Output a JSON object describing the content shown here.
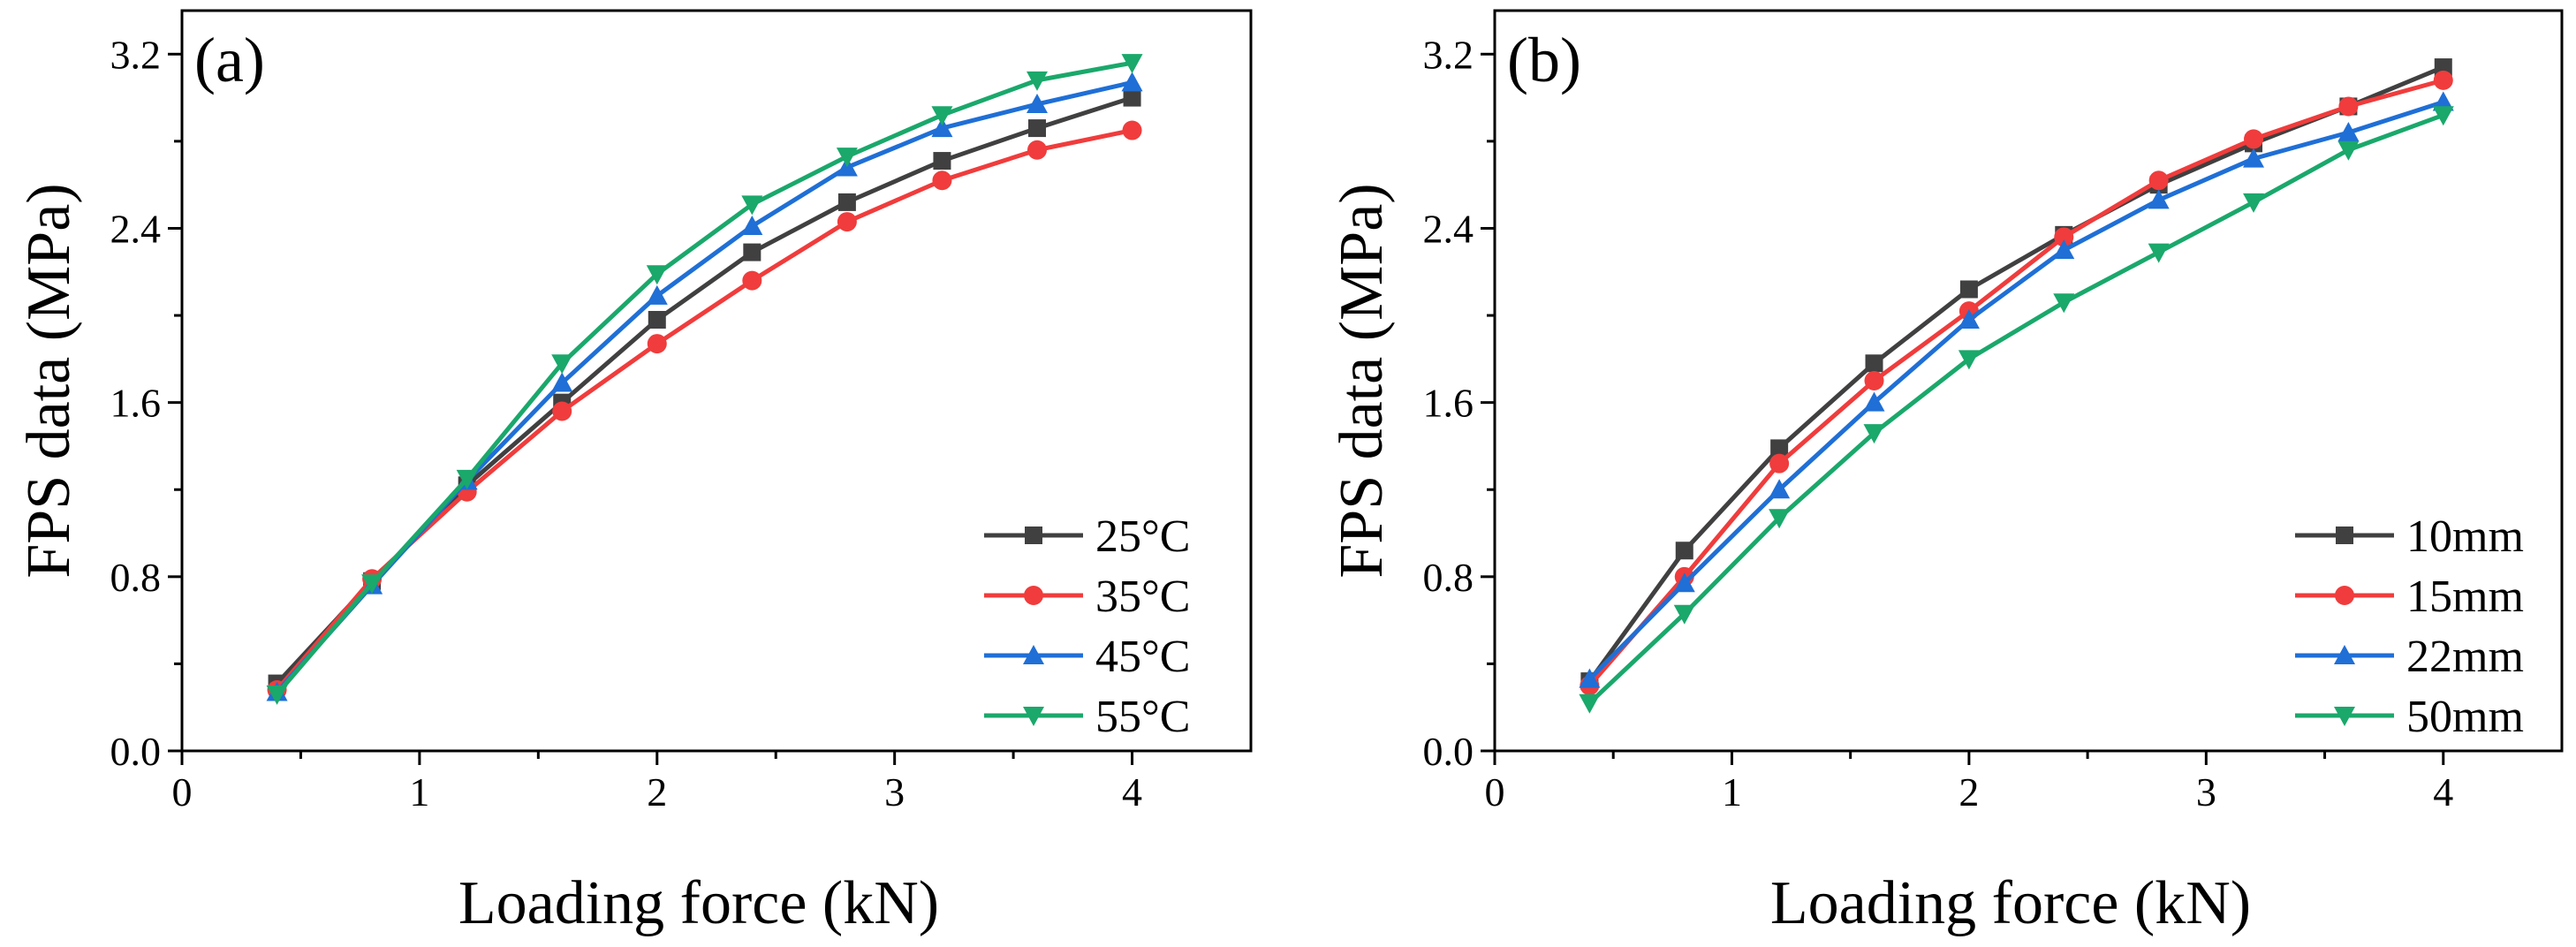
{
  "chart_data": [
    {
      "type": "line",
      "panel_label": "(a)",
      "xlabel": "Loading force  (kN)",
      "ylabel": "FPS data  (MPa)",
      "xlim": [
        0,
        4.5
      ],
      "ylim": [
        0,
        3.4
      ],
      "x_ticks": [
        0,
        1,
        2,
        3,
        4
      ],
      "x_tick_labels": [
        "0",
        "1",
        "2",
        "3",
        "4"
      ],
      "y_ticks": [
        0,
        0.8,
        1.6,
        2.4,
        3.2
      ],
      "y_tick_labels": [
        "0.0",
        "0.8",
        "1.6",
        "2.4",
        "3.2"
      ],
      "legend_position": "bottom-right",
      "x": [
        0.4,
        0.8,
        1.2,
        1.6,
        2.0,
        2.4,
        2.8,
        3.2,
        3.6,
        4.0
      ],
      "series": [
        {
          "name": "25°C",
          "color": "#404040",
          "marker": "square",
          "values": [
            0.31,
            0.78,
            1.22,
            1.6,
            1.98,
            2.29,
            2.52,
            2.71,
            2.86,
            3.0
          ]
        },
        {
          "name": "35°C",
          "color": "#f03c3c",
          "marker": "circle",
          "values": [
            0.28,
            0.79,
            1.19,
            1.56,
            1.87,
            2.16,
            2.43,
            2.62,
            2.76,
            2.85
          ]
        },
        {
          "name": "45°C",
          "color": "#1f6fd6",
          "marker": "triangle-up",
          "values": [
            0.27,
            0.76,
            1.24,
            1.69,
            2.09,
            2.41,
            2.68,
            2.86,
            2.97,
            3.07
          ]
        },
        {
          "name": "55°C",
          "color": "#1aa86b",
          "marker": "triangle-down",
          "values": [
            0.26,
            0.77,
            1.25,
            1.78,
            2.19,
            2.51,
            2.73,
            2.92,
            3.08,
            3.16
          ]
        }
      ]
    },
    {
      "type": "line",
      "panel_label": "(b)",
      "xlabel": "Loading force  (kN)",
      "ylabel": "FPS data  (MPa)",
      "xlim": [
        0,
        4.5
      ],
      "ylim": [
        0,
        3.4
      ],
      "x_ticks": [
        0,
        1,
        2,
        3,
        4
      ],
      "x_tick_labels": [
        "0",
        "1",
        "2",
        "3",
        "4"
      ],
      "y_ticks": [
        0,
        0.8,
        1.6,
        2.4,
        3.2
      ],
      "y_tick_labels": [
        "0.0",
        "0.8",
        "1.6",
        "2.4",
        "3.2"
      ],
      "legend_position": "bottom-right",
      "x": [
        0.4,
        0.8,
        1.2,
        1.6,
        2.0,
        2.4,
        2.8,
        3.2,
        3.6,
        4.0
      ],
      "series": [
        {
          "name": "10mm",
          "color": "#404040",
          "marker": "square",
          "values": [
            0.32,
            0.92,
            1.39,
            1.78,
            2.12,
            2.37,
            2.6,
            2.79,
            2.96,
            3.14
          ]
        },
        {
          "name": "15mm",
          "color": "#f03c3c",
          "marker": "circle",
          "values": [
            0.3,
            0.8,
            1.32,
            1.7,
            2.02,
            2.36,
            2.62,
            2.81,
            2.96,
            3.08
          ]
        },
        {
          "name": "22mm",
          "color": "#1f6fd6",
          "marker": "triangle-up",
          "values": [
            0.33,
            0.77,
            1.2,
            1.6,
            1.98,
            2.3,
            2.53,
            2.72,
            2.84,
            2.98
          ]
        },
        {
          "name": "50mm",
          "color": "#1aa86b",
          "marker": "triangle-down",
          "values": [
            0.22,
            0.63,
            1.07,
            1.46,
            1.8,
            2.06,
            2.29,
            2.52,
            2.76,
            2.92
          ]
        }
      ]
    }
  ]
}
